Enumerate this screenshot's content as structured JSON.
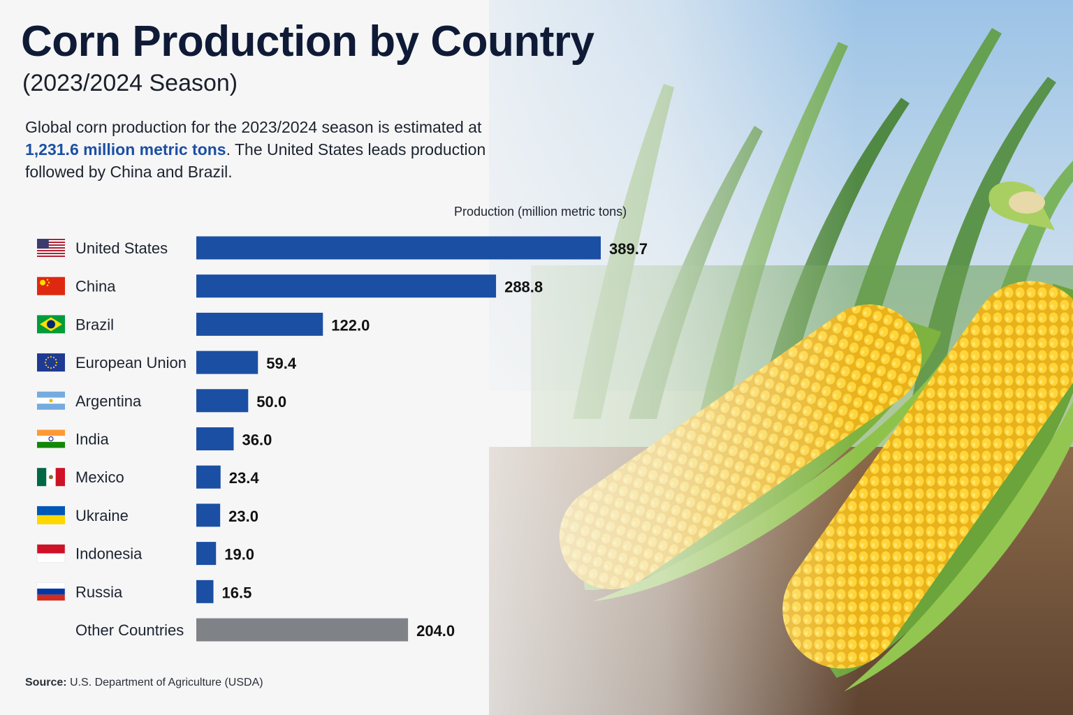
{
  "header": {
    "title": "Corn Production by Country",
    "subtitle": "(2023/2024 Season)"
  },
  "summary": {
    "part1": "Global corn production for the 2023/2024 season is estimated at ",
    "highlight": "1,231.6 million metric tons",
    "part2": ". The United States leads production followed by China and Brazil."
  },
  "footer": {
    "source_label": "Source:",
    "source_text": "U.S. Department of Agriculture (USDA)"
  },
  "colors": {
    "bar": "#1b4fa3",
    "bar_other": "#7f8287",
    "highlight": "#1b4fa3",
    "title": "#0f1b36"
  },
  "chart_data": {
    "type": "bar",
    "orientation": "horizontal",
    "xlabel": "Production  (million metric tons)",
    "categories": [
      "United States",
      "China",
      "Brazil",
      "European Union",
      "Argentina",
      "India",
      "Mexico",
      "Ukraine",
      "Indonesia",
      "Russia",
      "Other Countries"
    ],
    "values": [
      389.7,
      288.8,
      122.0,
      59.4,
      50.0,
      36.0,
      23.4,
      23.0,
      19.0,
      16.5,
      204.0
    ],
    "value_labels": [
      "389.7",
      "288.8",
      "122.0",
      "59.4",
      "50.0",
      "36.0",
      "23.4",
      "23.0",
      "19.0",
      "16.5",
      "204.0"
    ],
    "flags": [
      "us-flag-icon",
      "china-flag-icon",
      "brazil-flag-icon",
      "eu-flag-icon",
      "argentina-flag-icon",
      "india-flag-icon",
      "mexico-flag-icon",
      "ukraine-flag-icon",
      "indonesia-flag-icon",
      "russia-flag-icon",
      ""
    ],
    "xlim": [
      0,
      389.7
    ],
    "grid": false,
    "legend": "none"
  }
}
